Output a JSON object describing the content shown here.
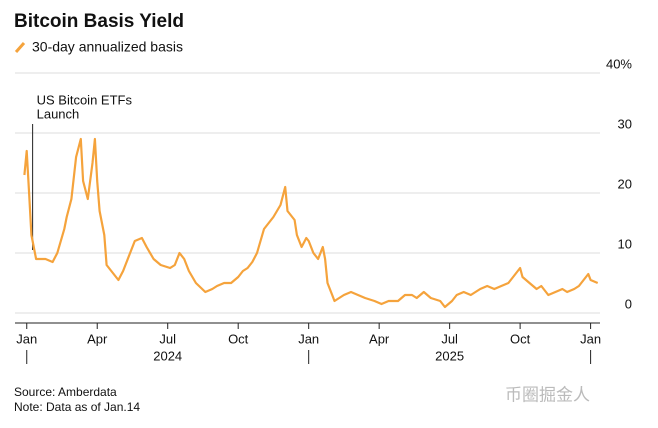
{
  "chart_data": {
    "type": "line",
    "title": "Bitcoin Basis Yield",
    "series": [
      {
        "name": "30-day annualized basis",
        "color": "#f5a33c",
        "x": [
          -0.1,
          0,
          0.1,
          0.2,
          0.25,
          0.4,
          0.8,
          1.1,
          1.3,
          1.6,
          1.7,
          1.9,
          2.1,
          2.3,
          2.4,
          2.6,
          2.8,
          2.9,
          3.0,
          3.1,
          3.3,
          3.4,
          3.6,
          3.9,
          4.1,
          4.4,
          4.6,
          4.9,
          5.1,
          5.4,
          5.7,
          6.1,
          6.3,
          6.5,
          6.7,
          6.9,
          7.2,
          7.6,
          7.9,
          8.1,
          8.4,
          8.7,
          9.0,
          9.2,
          9.4,
          9.6,
          9.8,
          10.1,
          10.3,
          10.5,
          10.8,
          11.0,
          11.1,
          11.4,
          11.5,
          11.7,
          11.9,
          12.0,
          12.2,
          12.4,
          12.6,
          12.7,
          12.8,
          13.0,
          13.1,
          13.5,
          13.8,
          14.1,
          14.4,
          14.8,
          15.1,
          15.4,
          15.8,
          16.1,
          16.4,
          16.6,
          16.9,
          17.2,
          17.6,
          17.8,
          18.1,
          18.3,
          18.6,
          18.9,
          19.3,
          19.6,
          19.9,
          20.2,
          20.5,
          20.7,
          21.0,
          21.1,
          21.4,
          21.7,
          21.9,
          22.2,
          22.5,
          22.8,
          23.0,
          23.3,
          23.5,
          23.7,
          23.9,
          24.0,
          24.3
        ],
        "values": [
          23,
          27,
          20,
          13,
          12,
          9,
          9,
          8.5,
          10,
          14,
          16,
          19,
          26,
          29,
          22,
          19,
          25,
          29,
          22,
          17,
          13,
          8,
          7,
          5.5,
          7,
          10,
          12,
          12.5,
          11,
          9,
          8,
          7.5,
          8,
          10,
          9,
          7,
          5,
          3.5,
          4,
          4.5,
          5,
          5,
          6,
          7,
          7.5,
          8.5,
          10,
          14,
          15,
          16,
          18,
          21,
          17,
          15.5,
          13,
          11,
          12.5,
          12,
          10,
          9,
          11,
          9,
          5,
          3,
          2,
          3,
          3.5,
          3,
          2.5,
          2,
          1.5,
          2,
          2,
          3,
          3,
          2.5,
          3.5,
          2.5,
          2,
          1,
          2,
          3,
          3.5,
          3,
          4,
          4.5,
          4,
          4.5,
          5,
          6,
          7.5,
          6,
          5,
          4,
          4.5,
          3,
          3.5,
          4,
          3.5,
          4,
          4.5,
          5.5,
          6.5,
          5.5,
          5
        ]
      }
    ],
    "xlim": [
      -0.5,
      24.4
    ],
    "xticks": [
      {
        "value": 0,
        "label": "Jan"
      },
      {
        "value": 3,
        "label": "Apr"
      },
      {
        "value": 6,
        "label": "Jul"
      },
      {
        "value": 9,
        "label": "Oct"
      },
      {
        "value": 12,
        "label": "Jan"
      },
      {
        "value": 15,
        "label": "Apr"
      },
      {
        "value": 18,
        "label": "Jul"
      },
      {
        "value": 21,
        "label": "Oct"
      },
      {
        "value": 24,
        "label": "Jan"
      }
    ],
    "year_labels": [
      {
        "value": 6,
        "label": "2024"
      },
      {
        "value": 18,
        "label": "2025"
      }
    ],
    "ylim": [
      0,
      40
    ],
    "yticks": [
      0,
      10,
      20,
      30,
      {
        "value": 40,
        "label": "40%"
      }
    ],
    "grid": true,
    "annotations": [
      {
        "lines": [
          "US Bitcoin ETFs",
          "Launch"
        ],
        "x": 0.25
      }
    ],
    "source": "Source: Amberdata",
    "note": "Note: Data as of Jan.14"
  },
  "watermark": "币圈掘金人"
}
